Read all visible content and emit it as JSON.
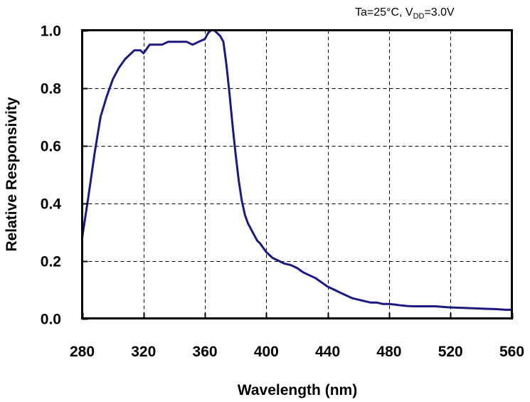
{
  "chart_data": {
    "type": "line",
    "title": "",
    "condition": {
      "prefix": "Ta=25°C, V",
      "subscript": "DD",
      "suffix": "=3.0V"
    },
    "xlabel": "Wavelength (nm)",
    "ylabel": "Relative Responsivity",
    "xlim": [
      280,
      560
    ],
    "ylim": [
      0.0,
      1.0
    ],
    "xticks": [
      280,
      320,
      360,
      400,
      440,
      480,
      520,
      560
    ],
    "xtick_labels": [
      "280",
      "320",
      "360",
      "400",
      "440",
      "480",
      "520",
      "560"
    ],
    "yticks": [
      0.0,
      0.2,
      0.4,
      0.6,
      0.8,
      1.0
    ],
    "ytick_labels": [
      "0.0",
      "0.2",
      "0.4",
      "0.6",
      "0.8",
      "1.0"
    ],
    "grid": true,
    "line_color": "#1a1a80",
    "series": [
      {
        "x": [
          280,
          284,
          288,
          292,
          296,
          300,
          304,
          308,
          312,
          314,
          318,
          320,
          324,
          328,
          332,
          336,
          340,
          344,
          348,
          352,
          356,
          360,
          362,
          364,
          366,
          368,
          370,
          372,
          374,
          376,
          378,
          380,
          382,
          384,
          386,
          388,
          390,
          392,
          394,
          396,
          400,
          404,
          408,
          412,
          416,
          420,
          424,
          428,
          432,
          436,
          440,
          444,
          448,
          452,
          456,
          460,
          464,
          468,
          472,
          476,
          480,
          484,
          488,
          492,
          496,
          500,
          510,
          520,
          530,
          540,
          550,
          556,
          560
        ],
        "y": [
          0.28,
          0.42,
          0.57,
          0.7,
          0.77,
          0.83,
          0.87,
          0.9,
          0.92,
          0.93,
          0.93,
          0.92,
          0.95,
          0.95,
          0.95,
          0.96,
          0.96,
          0.96,
          0.96,
          0.95,
          0.96,
          0.97,
          0.99,
          1.0,
          1.0,
          0.99,
          0.98,
          0.96,
          0.88,
          0.78,
          0.67,
          0.57,
          0.48,
          0.41,
          0.36,
          0.33,
          0.31,
          0.29,
          0.27,
          0.26,
          0.23,
          0.21,
          0.2,
          0.19,
          0.185,
          0.175,
          0.16,
          0.15,
          0.14,
          0.125,
          0.11,
          0.1,
          0.09,
          0.08,
          0.07,
          0.065,
          0.06,
          0.055,
          0.055,
          0.05,
          0.05,
          0.048,
          0.045,
          0.043,
          0.042,
          0.042,
          0.042,
          0.038,
          0.036,
          0.034,
          0.032,
          0.03,
          0.03
        ]
      }
    ]
  }
}
